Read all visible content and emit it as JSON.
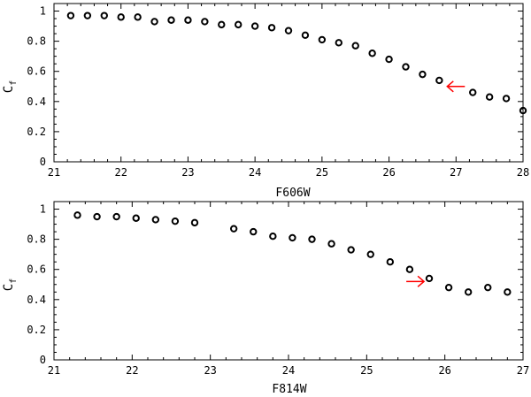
{
  "chart_data": [
    {
      "type": "scatter",
      "xlabel": "F606W",
      "ylabel": "C",
      "ylabel_subscript": "f",
      "xlim": [
        21,
        28
      ],
      "ylim": [
        0,
        1.05
      ],
      "xticks": [
        "21",
        "22",
        "23",
        "24",
        "25",
        "26",
        "27",
        "28"
      ],
      "yticks": [
        "0",
        "0.2",
        "0.4",
        "0.6",
        "0.8",
        "1"
      ],
      "series": [
        {
          "marker": "open-circle",
          "color": "#000000",
          "x": [
            21.25,
            21.5,
            21.75,
            22.0,
            22.25,
            22.5,
            22.75,
            23.0,
            23.25,
            23.5,
            23.75,
            24.0,
            24.25,
            24.5,
            24.75,
            25.0,
            25.25,
            25.5,
            25.75,
            26.0,
            26.25,
            26.5,
            26.75,
            27.25,
            27.5,
            27.75,
            28.0
          ],
          "y": [
            0.97,
            0.97,
            0.97,
            0.96,
            0.96,
            0.93,
            0.94,
            0.94,
            0.93,
            0.91,
            0.91,
            0.9,
            0.89,
            0.87,
            0.84,
            0.81,
            0.79,
            0.77,
            0.72,
            0.68,
            0.63,
            0.58,
            0.54,
            0.46,
            0.43,
            0.42,
            0.34
          ]
        }
      ],
      "annotation": {
        "type": "arrow",
        "direction": "left",
        "x": 27.0,
        "y": 0.5,
        "color": "#ff0000"
      },
      "grid": false
    },
    {
      "type": "scatter",
      "xlabel": "F814W",
      "ylabel": "C",
      "ylabel_subscript": "f",
      "xlim": [
        21,
        27
      ],
      "ylim": [
        0,
        1.05
      ],
      "xticks": [
        "21",
        "22",
        "23",
        "24",
        "25",
        "26",
        "27"
      ],
      "yticks": [
        "0",
        "0.2",
        "0.4",
        "0.6",
        "0.8",
        "1"
      ],
      "series": [
        {
          "marker": "open-circle",
          "color": "#000000",
          "x": [
            21.3,
            21.55,
            21.8,
            22.05,
            22.3,
            22.55,
            22.8,
            23.3,
            23.55,
            23.8,
            24.05,
            24.3,
            24.55,
            24.8,
            25.05,
            25.3,
            25.55,
            25.8,
            26.05,
            26.3,
            26.55,
            26.8
          ],
          "y": [
            0.96,
            0.95,
            0.95,
            0.94,
            0.93,
            0.92,
            0.91,
            0.87,
            0.85,
            0.82,
            0.81,
            0.8,
            0.77,
            0.73,
            0.7,
            0.65,
            0.6,
            0.54,
            0.48,
            0.45,
            0.48,
            0.45
          ]
        }
      ],
      "annotation": {
        "type": "arrow",
        "direction": "right",
        "x": 25.62,
        "y": 0.52,
        "color": "#ff0000"
      },
      "grid": false
    }
  ]
}
